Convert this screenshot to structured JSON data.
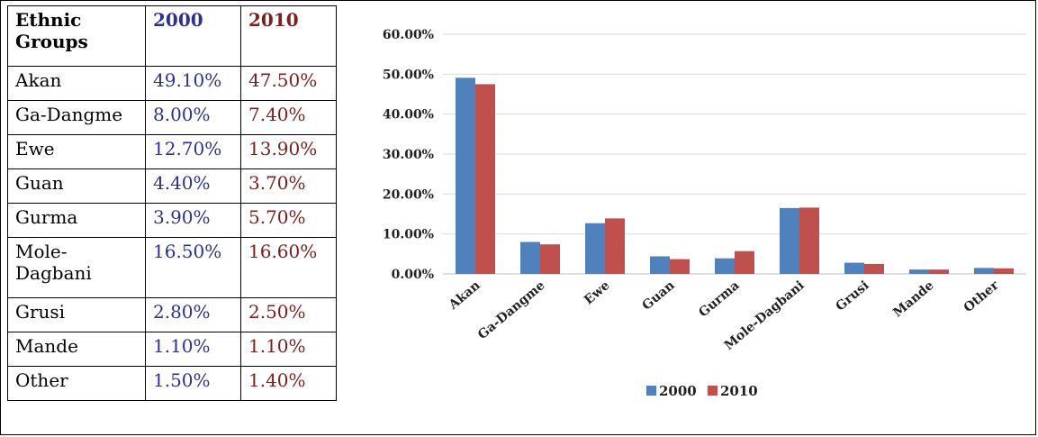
{
  "table": {
    "headers": [
      "Ethnic Groups",
      "2000",
      "2010"
    ],
    "rows": [
      [
        "Akan",
        "49.10%",
        "47.50%"
      ],
      [
        "Ga-Dangme",
        "8.00%",
        "7.40%"
      ],
      [
        "Ewe",
        "12.70%",
        "13.90%"
      ],
      [
        "Guan",
        "4.40%",
        "3.70%"
      ],
      [
        "Gurma",
        "3.90%",
        "5.70%"
      ],
      [
        "Mole-Dagbani",
        "16.50%",
        "16.60%"
      ],
      [
        "Grusi",
        "2.80%",
        "2.50%"
      ],
      [
        "Mande",
        "1.10%",
        "1.10%"
      ],
      [
        "Other",
        "1.50%",
        "1.40%"
      ]
    ]
  },
  "chart_data": {
    "type": "bar",
    "categories": [
      "Akan",
      "Ga-Dangme",
      "Ewe",
      "Guan",
      "Gurma",
      "Mole-Dagbani",
      "Grusi",
      "Mande",
      "Other"
    ],
    "series": [
      {
        "name": "2000",
        "values": [
          49.1,
          8.0,
          12.7,
          4.4,
          3.9,
          16.5,
          2.8,
          1.1,
          1.5
        ],
        "color": "#4f81bd"
      },
      {
        "name": "2010",
        "values": [
          47.5,
          7.4,
          13.9,
          3.7,
          5.7,
          16.6,
          2.5,
          1.1,
          1.4
        ],
        "color": "#c0504d"
      }
    ],
    "yticks": [
      "0.00%",
      "10.00%",
      "20.00%",
      "30.00%",
      "40.00%",
      "50.00%",
      "60.00%"
    ],
    "ylim": [
      0,
      60
    ],
    "grid": true,
    "legend_position": "bottom"
  }
}
